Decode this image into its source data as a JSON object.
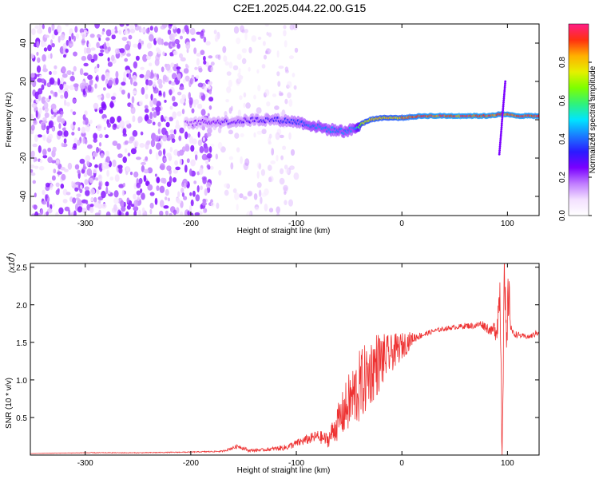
{
  "title": "C2E1.2025.044.22.00.G15",
  "colors": {
    "spectral_cmap": [
      "#ffffff",
      "#f3e0ff",
      "#c07cff",
      "#7a00ff",
      "#2a1bff",
      "#1a7cff",
      "#00e5ff",
      "#30f27a",
      "#7dff00",
      "#e6f000",
      "#ffb000",
      "#ff3010",
      "#ff1c86"
    ],
    "snr_line": "#ee3333"
  },
  "chart_data": [
    {
      "type": "heatmap",
      "name": "spectrogram",
      "xlabel": "Height of straight line (km)",
      "ylabel": "Frequency (Hz)",
      "xlim": [
        -352,
        130
      ],
      "ylim": [
        -50,
        50
      ],
      "xticks": [
        -300,
        -200,
        -100,
        0,
        100
      ],
      "yticks": [
        -40,
        -20,
        0,
        20,
        40
      ],
      "colorbar": {
        "label": "Normalized spectral amplitude",
        "range": [
          0.0,
          1.0
        ],
        "ticks": [
          "0.0",
          "0.2",
          "0.4",
          "0.6",
          "0.8"
        ]
      },
      "signal_trace": {
        "x": [
          -205,
          -180,
          -160,
          -140,
          -120,
          -100,
          -85,
          -70,
          -55,
          -45,
          -38,
          -30,
          -20,
          -10,
          0,
          20,
          50,
          80,
          95,
          110,
          130
        ],
        "freq": [
          -2,
          -1,
          -1,
          0,
          0,
          -1,
          -3,
          -5,
          -6,
          -5,
          -2,
          0,
          1,
          1,
          1,
          2,
          2,
          2,
          3,
          2,
          2
        ],
        "amplitude": [
          0.22,
          0.28,
          0.3,
          0.32,
          0.35,
          0.4,
          0.45,
          0.45,
          0.45,
          0.45,
          0.8,
          0.85,
          0.85,
          0.85,
          0.88,
          0.97,
          0.98,
          0.98,
          0.95,
          0.98,
          0.97
        ]
      },
      "noise": {
        "x_range": [
          -352,
          -180
        ],
        "sparse_x_range": [
          -180,
          -100
        ],
        "amplitude_range": [
          0.05,
          0.25
        ]
      },
      "spike": {
        "x": 95,
        "freq_range": [
          -18,
          20
        ]
      }
    },
    {
      "type": "line",
      "name": "snr",
      "xlabel": "Height of straight line (km)",
      "ylabel": "SNR (10 * v/v)",
      "y_multiplier": "(x10",
      "y_exponent": "4",
      "xlim": [
        -352,
        130
      ],
      "ylim": [
        0,
        2.55
      ],
      "xticks": [
        -300,
        -200,
        -100,
        0,
        100
      ],
      "yticks": [
        "0.5",
        "1.0",
        "1.5",
        "2.0",
        "2.5"
      ],
      "series": [
        {
          "x": [
            -352,
            -300,
            -250,
            -200,
            -170,
            -155,
            -145,
            -130,
            -110,
            -95,
            -80,
            -70,
            -60,
            -50,
            -40,
            -30,
            -25,
            -20,
            -15,
            -10,
            -5,
            0,
            5,
            10,
            15,
            20,
            30,
            40,
            50,
            60,
            70,
            75,
            80,
            85,
            90,
            93,
            95,
            97,
            99,
            101,
            103,
            105,
            110,
            115,
            120,
            125,
            130
          ],
          "y": [
            0.02,
            0.03,
            0.03,
            0.04,
            0.05,
            0.12,
            0.06,
            0.07,
            0.1,
            0.18,
            0.25,
            0.2,
            0.45,
            0.7,
            0.9,
            1.1,
            1.2,
            1.25,
            1.3,
            1.35,
            1.4,
            1.45,
            1.5,
            1.55,
            1.58,
            1.6,
            1.65,
            1.68,
            1.7,
            1.72,
            1.72,
            1.75,
            1.7,
            1.65,
            1.7,
            2.2,
            0.2,
            2.5,
            1.2,
            2.2,
            1.75,
            1.62,
            1.6,
            1.58,
            1.57,
            1.6,
            1.65
          ],
          "noise_amplitude": [
            0.0,
            0.005,
            0.005,
            0.006,
            0.01,
            0.03,
            0.02,
            0.02,
            0.04,
            0.06,
            0.08,
            0.1,
            0.25,
            0.4,
            0.5,
            0.45,
            0.45,
            0.4,
            0.3,
            0.25,
            0.22,
            0.18,
            0.15,
            0.08,
            0.05,
            0.04,
            0.03,
            0.03,
            0.03,
            0.04,
            0.04,
            0.05,
            0.07,
            0.06,
            0.2,
            0.3,
            0.5,
            0.3,
            0.6,
            0.4,
            0.1,
            0.05,
            0.04,
            0.03,
            0.03,
            0.04,
            0.05
          ]
        }
      ]
    }
  ]
}
